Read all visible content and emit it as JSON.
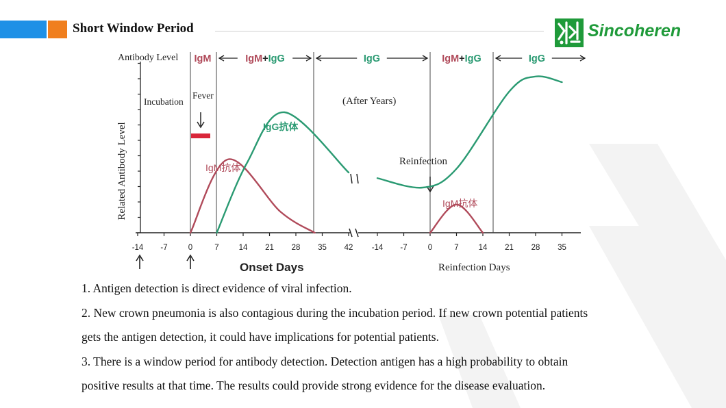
{
  "slide": {
    "title": "Short Window Period",
    "brand": "Sincoheren"
  },
  "colors": {
    "igm": "#b04a5a",
    "igg": "#2a9a72",
    "fever_bar": "#d9263a",
    "logo_green": "#1f9a3a"
  },
  "chart_data": {
    "type": "line",
    "ylabel": "Related Antibody Level",
    "header": {
      "left_label": "Antibody Level",
      "phases": [
        {
          "label": "IgM",
          "color": "igm"
        },
        {
          "label": "IgM+IgG",
          "color": "mixed"
        },
        {
          "label": "IgG",
          "color": "igg"
        },
        {
          "label": "IgM+IgG",
          "color": "mixed"
        },
        {
          "label": "IgG",
          "color": "igg"
        }
      ]
    },
    "x_axis_left": {
      "label": "Onset Days",
      "ticks": [
        "-14",
        "-7",
        "0",
        "7",
        "14",
        "21",
        "28",
        "35",
        "42"
      ]
    },
    "x_axis_right": {
      "label": "Reinfection Days",
      "ticks": [
        "-14",
        "-7",
        "0",
        "7",
        "14",
        "21",
        "28",
        "35"
      ]
    },
    "annotations": {
      "incubation": "Incubation",
      "fever": "Fever",
      "after_years": "(After Years)",
      "reinfection": "Reinfection",
      "igg_peak": "IgG抗体",
      "igm_peak": "IgM抗体",
      "igm_peak_reinfection": "IgM抗体"
    },
    "series": [
      {
        "name": "IgM抗体",
        "segment": "onset",
        "points": [
          [
            0,
            0
          ],
          [
            10,
            3.9
          ],
          [
            24,
            1.1
          ],
          [
            33,
            0
          ]
        ]
      },
      {
        "name": "IgG抗体",
        "segment": "onset",
        "points": [
          [
            7,
            0
          ],
          [
            15,
            3.7
          ],
          [
            25,
            6.4
          ],
          [
            42,
            3.2
          ]
        ]
      },
      {
        "name": "IgM抗体",
        "segment": "reinfection",
        "points": [
          [
            0,
            0
          ],
          [
            7,
            1.5
          ],
          [
            14,
            0
          ]
        ]
      },
      {
        "name": "IgG抗体",
        "segment": "reinfection",
        "points": [
          [
            -14,
            2.9
          ],
          [
            -2,
            2.4
          ],
          [
            7,
            3.4
          ],
          [
            21,
            7.5
          ],
          [
            28,
            8.3
          ],
          [
            35,
            8.0
          ]
        ]
      }
    ]
  },
  "body_text": [
    "1. Antigen detection is direct evidence of viral infection.",
    "2. New crown pneumonia is also contagious during the incubation period. If new crown potential patients",
    "gets the antigen detection, it could have implications for potential patients.",
    "3. There is a window period for antibody detection. Detection antigen has a high probability to obtain",
    "positive results at that time. The results could provide strong evidence for the disease evaluation."
  ]
}
